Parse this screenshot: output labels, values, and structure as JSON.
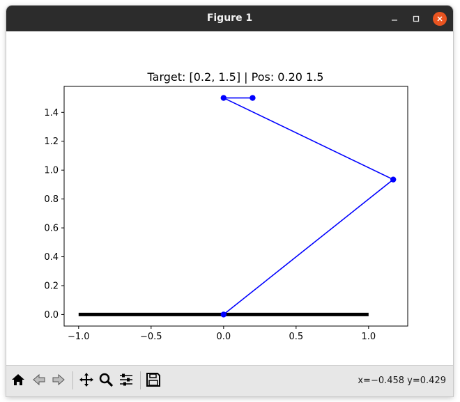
{
  "window": {
    "title": "Figure 1",
    "controls": {
      "minimize_icon": "minimize-icon",
      "maximize_icon": "maximize-icon",
      "close_icon": "close-icon",
      "close_color": "#e95420"
    }
  },
  "toolbar": {
    "buttons": [
      {
        "name": "home-button",
        "icon": "home-icon"
      },
      {
        "name": "back-button",
        "icon": "back-arrow-icon"
      },
      {
        "name": "forward-button",
        "icon": "forward-arrow-icon"
      },
      {
        "name": "pan-button",
        "icon": "move-icon"
      },
      {
        "name": "zoom-button",
        "icon": "magnifier-icon"
      },
      {
        "name": "configure-subplots-button",
        "icon": "sliders-icon"
      },
      {
        "name": "save-button",
        "icon": "floppy-disk-icon"
      }
    ],
    "coords": "x=−0.458 y=0.429"
  },
  "chart_data": {
    "type": "line",
    "title": "Target: [0.2, 1.5] | Pos: 0.20 1.5",
    "xlabel": "",
    "ylabel": "",
    "xlim": [
      -1.1,
      1.27
    ],
    "ylim": [
      -0.08,
      1.58
    ],
    "xticks": [
      -1.0,
      -0.5,
      0.0,
      0.5,
      1.0
    ],
    "xtick_labels": [
      "−1.0",
      "−0.5",
      "0.0",
      "0.5",
      "1.0"
    ],
    "yticks": [
      0.0,
      0.2,
      0.4,
      0.6,
      0.8,
      1.0,
      1.2,
      1.4
    ],
    "ytick_labels": [
      "0.0",
      "0.2",
      "0.4",
      "0.6",
      "0.8",
      "1.0",
      "1.2",
      "1.4"
    ],
    "grid": false,
    "series": [
      {
        "role": "ground",
        "color": "#000000",
        "x": [
          -1.0,
          1.0
        ],
        "y": [
          0.0,
          0.0
        ]
      },
      {
        "role": "arm",
        "color": "#0000ff",
        "markers": true,
        "x": [
          0.0,
          1.17,
          0.0,
          0.2
        ],
        "y": [
          0.0,
          0.935,
          1.5,
          1.5
        ]
      }
    ]
  }
}
